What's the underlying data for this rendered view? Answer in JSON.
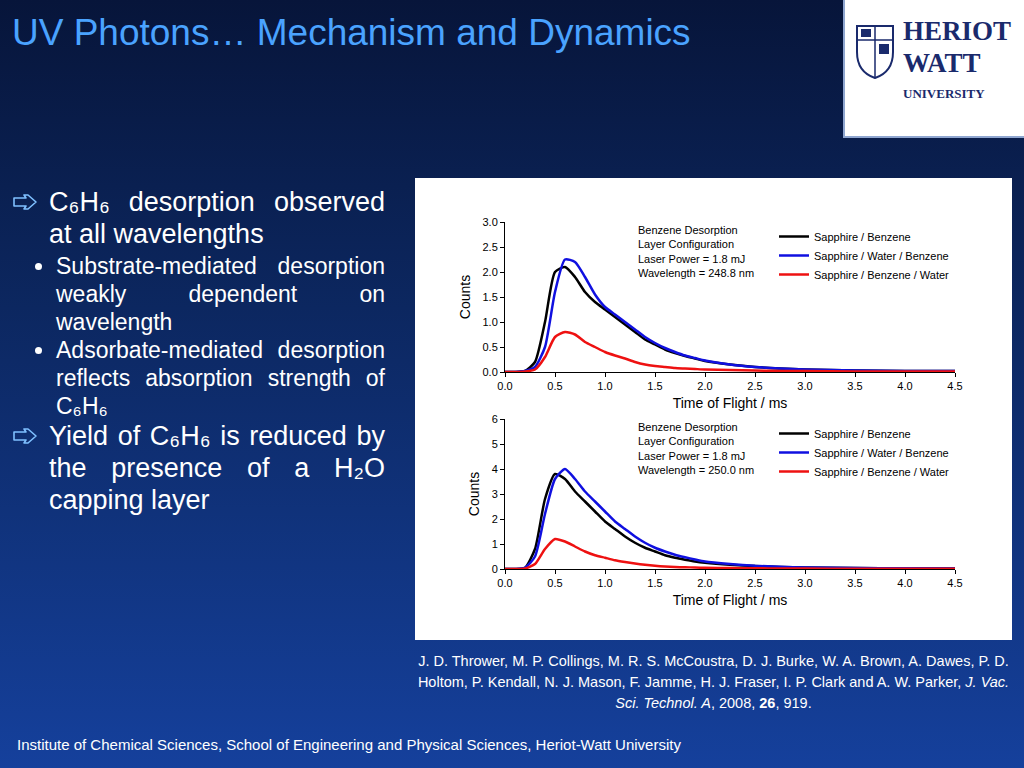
{
  "slide": {
    "title": "UV Photons… Mechanism and Dynamics",
    "logo": [
      "HERIOT",
      "WATT",
      "UNIVERSITY"
    ],
    "bullets": [
      {
        "text": "C₆H₆ desorption observed at all wavelengths",
        "sub": [
          "Substrate-mediated desorption weakly dependent on wavelength",
          "Adsorbate-mediated desorption reflects absorption strength of C₆H₆"
        ]
      },
      {
        "text": "Yield of C₆H₆ is reduced by the presence of a H₂O capping layer"
      }
    ],
    "citation": [
      {
        "text": "J. D. Thrower, M. P. Collings, M. R. S. McCoustra, D. J. Burke, W. A. Brown, A. Dawes, P. D. Holtom, P. Kendall, N. J. Mason, F. Jamme, H. J. Fraser, I. P. Clark and A. W. Parker, ",
        "style": "normal"
      },
      {
        "text": "J. Vac. Sci. Technol. A",
        "style": "italic"
      },
      {
        "text": ", 2008, ",
        "style": "normal"
      },
      {
        "text": "26",
        "style": "bold"
      },
      {
        "text": ", 919.",
        "style": "normal"
      }
    ],
    "footer": "Institute of Chemical Sciences, School of Engineering and Physical Sciences, Heriot-Watt University"
  },
  "chart_data": [
    {
      "type": "line",
      "annotations": [
        "Benzene Desorption",
        "Layer Configuration",
        "Laser Power = 1.8 mJ",
        "Wavelength = 248.8 nm"
      ],
      "x_label": "Time of Flight / ms",
      "y_label": "Counts",
      "x": [
        0,
        0.1,
        0.2,
        0.3,
        0.4,
        0.5,
        0.6,
        0.7,
        0.8,
        0.9,
        1.0,
        1.1,
        1.2,
        1.3,
        1.4,
        1.5,
        1.6,
        1.7,
        1.8,
        1.9,
        2.0,
        2.25,
        2.5,
        2.75,
        3.0,
        3.5,
        4.0,
        4.5
      ],
      "series": [
        {
          "name": "Sapphire / Benzene",
          "color": "#000000",
          "line_style": "solid",
          "values": [
            0,
            0,
            0.02,
            0.2,
            1.0,
            2.0,
            2.1,
            1.9,
            1.6,
            1.4,
            1.25,
            1.1,
            0.95,
            0.8,
            0.65,
            0.55,
            0.45,
            0.38,
            0.32,
            0.27,
            0.22,
            0.15,
            0.1,
            0.07,
            0.05,
            0.03,
            0.02,
            0.02
          ]
        },
        {
          "name": "Sapphire / Water / Benzene",
          "color": "#1010e0",
          "line_style": "solid",
          "values": [
            0,
            0,
            0.02,
            0.1,
            0.5,
            1.6,
            2.25,
            2.2,
            1.9,
            1.55,
            1.3,
            1.15,
            1.0,
            0.85,
            0.7,
            0.58,
            0.48,
            0.4,
            0.33,
            0.28,
            0.23,
            0.15,
            0.1,
            0.07,
            0.05,
            0.03,
            0.02,
            0.02
          ]
        },
        {
          "name": "Sapphire / Benzene / Water",
          "color": "#ee1111",
          "line_style": "solid",
          "values": [
            0,
            0,
            0.01,
            0.05,
            0.3,
            0.7,
            0.8,
            0.75,
            0.6,
            0.5,
            0.4,
            0.33,
            0.27,
            0.2,
            0.15,
            0.12,
            0.1,
            0.08,
            0.07,
            0.06,
            0.05,
            0.04,
            0.03,
            0.02,
            0.02,
            0.01,
            0.01,
            0.01
          ]
        }
      ],
      "xlim": [
        0,
        4.5
      ],
      "xticks": [
        {
          "value": 0,
          "label": "0.0"
        },
        0.5,
        {
          "value": 1,
          "label": "1.0"
        },
        1.5,
        {
          "value": 2,
          "label": "2.0"
        },
        2.5,
        {
          "value": 3,
          "label": "3.0"
        },
        3.5,
        {
          "value": 4,
          "label": "4.0"
        },
        4.5
      ],
      "ylim": [
        0,
        3
      ],
      "yticks": [
        {
          "value": 0,
          "label": "0.0"
        },
        0.5,
        {
          "value": 1,
          "label": "1.0"
        },
        1.5,
        {
          "value": 2,
          "label": "2.0"
        },
        2.5,
        {
          "value": 3,
          "label": "3.0"
        }
      ],
      "grid": false,
      "legend": "top right"
    },
    {
      "type": "line",
      "annotations": [
        "Benzene Desorption",
        "Layer Configuration",
        "Laser Power = 1.8 mJ",
        "Wavelength = 250.0 nm"
      ],
      "x_label": "Time of Flight / ms",
      "y_label": "Counts",
      "x": [
        0,
        0.1,
        0.2,
        0.3,
        0.4,
        0.5,
        0.6,
        0.7,
        0.8,
        0.9,
        1.0,
        1.1,
        1.2,
        1.3,
        1.4,
        1.5,
        1.6,
        1.7,
        1.8,
        1.9,
        2.0,
        2.25,
        2.5,
        2.75,
        3.0,
        3.5,
        4.0,
        4.5
      ],
      "series": [
        {
          "name": "Sapphire / Benzene",
          "color": "#000000",
          "line_style": "solid",
          "values": [
            0,
            0,
            0.05,
            0.8,
            2.8,
            3.8,
            3.6,
            3.1,
            2.7,
            2.3,
            1.9,
            1.6,
            1.3,
            1.05,
            0.85,
            0.7,
            0.55,
            0.45,
            0.37,
            0.3,
            0.25,
            0.17,
            0.12,
            0.08,
            0.06,
            0.04,
            0.03,
            0.02
          ]
        },
        {
          "name": "Sapphire / Water / Benzene",
          "color": "#1010e0",
          "line_style": "solid",
          "values": [
            0,
            0,
            0.05,
            0.5,
            2.2,
            3.6,
            4.0,
            3.6,
            3.1,
            2.7,
            2.3,
            1.9,
            1.6,
            1.3,
            1.05,
            0.85,
            0.7,
            0.57,
            0.47,
            0.38,
            0.3,
            0.2,
            0.13,
            0.09,
            0.06,
            0.04,
            0.03,
            0.02
          ]
        },
        {
          "name": "Sapphire / Benzene / Water",
          "color": "#ee1111",
          "line_style": "solid",
          "values": [
            0,
            0,
            0.02,
            0.2,
            0.8,
            1.2,
            1.1,
            0.9,
            0.7,
            0.55,
            0.45,
            0.35,
            0.28,
            0.22,
            0.17,
            0.13,
            0.1,
            0.08,
            0.07,
            0.06,
            0.05,
            0.04,
            0.03,
            0.02,
            0.02,
            0.01,
            0.01,
            0.01
          ]
        }
      ],
      "xlim": [
        0,
        4.5
      ],
      "xticks": [
        {
          "value": 0,
          "label": "0.0"
        },
        0.5,
        {
          "value": 1,
          "label": "1.0"
        },
        1.5,
        {
          "value": 2,
          "label": "2.0"
        },
        2.5,
        {
          "value": 3,
          "label": "3.0"
        },
        3.5,
        {
          "value": 4,
          "label": "4.0"
        },
        4.5
      ],
      "ylim": [
        0,
        6
      ],
      "yticks": [
        0,
        1,
        2,
        3,
        4,
        5,
        6
      ],
      "grid": false,
      "legend": "top right"
    }
  ]
}
